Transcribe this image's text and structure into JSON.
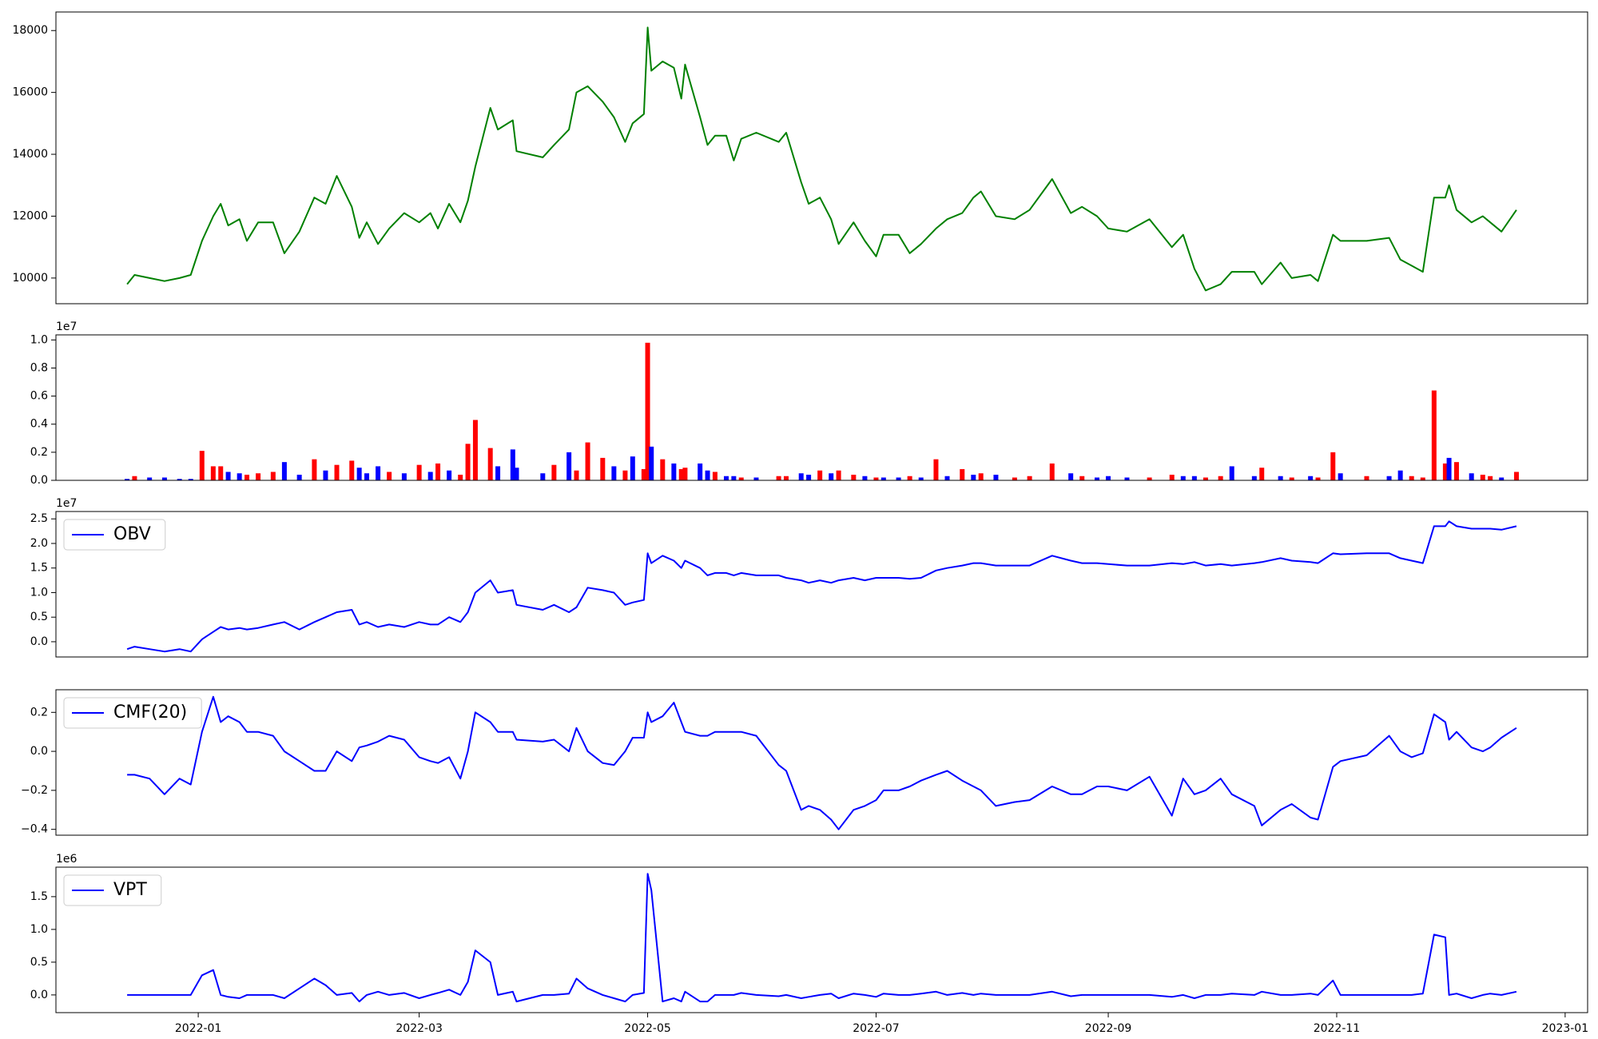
{
  "chart_data": [
    {
      "type": "line",
      "color": "#008000",
      "x": [
        18974,
        18976,
        18980,
        18984,
        18988,
        18991,
        18994,
        18997,
        18999,
        19001,
        19004,
        19006,
        19009,
        19013,
        19016,
        19020,
        19024,
        19027,
        19030,
        19034,
        19036,
        19038,
        19041,
        19044,
        19048,
        19052,
        19055,
        19057,
        19060,
        19063,
        19065,
        19067,
        19071,
        19073,
        19077,
        19078,
        19085,
        19088,
        19092,
        19094,
        19097,
        19101,
        19104,
        19107,
        19109,
        19112,
        19113,
        19114,
        19117,
        19120,
        19122,
        19123,
        19127,
        19129,
        19131,
        19134,
        19136,
        19138,
        19142,
        19148,
        19150,
        19154,
        19156,
        19159,
        19162,
        19164,
        19168,
        19171,
        19174,
        19176,
        19180,
        19183,
        19186,
        19190,
        19193,
        19197,
        19200,
        19202,
        19206,
        19211,
        19215,
        19221,
        19226,
        19229,
        19233,
        19236,
        19241,
        19247,
        19253,
        19256,
        19259,
        19262,
        19266,
        19269,
        19275,
        19277,
        19282,
        19285,
        19290,
        19292,
        19296,
        19298,
        19305,
        19311,
        19314,
        19317,
        19320,
        19323,
        19326,
        19327,
        19329,
        19333,
        19336,
        19338,
        19341,
        19345
      ],
      "values": [
        9800,
        10100,
        10000,
        9900,
        10000,
        10100,
        11200,
        12000,
        12400,
        11700,
        11900,
        11200,
        11800,
        11800,
        10800,
        11500,
        12600,
        12400,
        13300,
        12300,
        11300,
        11800,
        11100,
        11600,
        12100,
        11800,
        12100,
        11600,
        12400,
        11800,
        12500,
        13600,
        15500,
        14800,
        15100,
        14100,
        13900,
        14300,
        14800,
        16000,
        16200,
        15700,
        15200,
        14400,
        15000,
        15300,
        18100,
        16700,
        17000,
        16800,
        15800,
        16900,
        15200,
        14300,
        14600,
        14600,
        13800,
        14500,
        14700,
        14400,
        14700,
        13100,
        12400,
        12600,
        11900,
        11100,
        11800,
        11200,
        10700,
        11400,
        11400,
        10800,
        11100,
        11600,
        11900,
        12100,
        12600,
        12800,
        12000,
        11900,
        12200,
        13200,
        12100,
        12300,
        12000,
        11600,
        11500,
        11900,
        11000,
        11400,
        10300,
        9600,
        9800,
        10200,
        10200,
        9800,
        10500,
        10000,
        10100,
        9900,
        11400,
        11200,
        11200,
        11300,
        10600,
        10400,
        10200,
        12600,
        12600,
        13000,
        12200,
        11800,
        12000,
        11800,
        11500,
        12200
      ],
      "xlim": [
        18955,
        19364
      ],
      "ylim": [
        9170,
        18600
      ],
      "yticks": [
        10000,
        12000,
        14000,
        16000,
        18000
      ]
    },
    {
      "type": "bar",
      "offset_text": "1e7",
      "values": [
        0.01,
        0.03,
        0.02,
        0.02,
        0.01,
        0.01,
        0.21,
        0.1,
        0.1,
        0.06,
        0.05,
        0.04,
        0.05,
        0.06,
        0.13,
        0.04,
        0.15,
        0.07,
        0.11,
        0.14,
        0.09,
        0.05,
        0.1,
        0.06,
        0.05,
        0.11,
        0.06,
        0.12,
        0.07,
        0.04,
        0.26,
        0.43,
        0.23,
        0.1,
        0.22,
        0.09,
        0.05,
        0.11,
        0.2,
        0.07,
        0.27,
        0.16,
        0.1,
        0.07,
        0.17,
        0.08,
        0.98,
        0.24,
        0.15,
        0.12,
        0.08,
        0.09,
        0.12,
        0.07,
        0.06,
        0.03,
        0.03,
        0.02,
        0.02,
        0.03,
        0.03,
        0.05,
        0.04,
        0.07,
        0.05,
        0.07,
        0.04,
        0.03,
        0.02,
        0.02,
        0.02,
        0.03,
        0.02,
        0.15,
        0.03,
        0.08,
        0.04,
        0.05,
        0.04,
        0.02,
        0.03,
        0.12,
        0.05,
        0.03,
        0.02,
        0.03,
        0.02,
        0.02,
        0.04,
        0.03,
        0.03,
        0.02,
        0.03,
        0.1,
        0.03,
        0.09,
        0.03,
        0.02,
        0.03,
        0.02,
        0.2,
        0.05,
        0.03,
        0.03,
        0.07,
        0.03,
        0.02,
        0.64,
        0.12,
        0.16,
        0.13,
        0.05,
        0.04,
        0.03,
        0.02,
        0.06
      ],
      "colors": [
        "#0000ff",
        "#ff0000",
        "#0000ff",
        "#0000ff",
        "#0000ff",
        "#0000ff",
        "#ff0000",
        "#ff0000",
        "#ff0000",
        "#0000ff",
        "#0000ff",
        "#ff0000",
        "#ff0000",
        "#ff0000",
        "#0000ff",
        "#0000ff",
        "#ff0000",
        "#0000ff",
        "#ff0000",
        "#ff0000",
        "#0000ff",
        "#0000ff",
        "#0000ff",
        "#ff0000",
        "#0000ff",
        "#ff0000",
        "#0000ff",
        "#ff0000",
        "#0000ff",
        "#ff0000",
        "#ff0000",
        "#ff0000",
        "#ff0000",
        "#0000ff",
        "#0000ff",
        "#0000ff",
        "#0000ff",
        "#ff0000",
        "#0000ff",
        "#ff0000",
        "#ff0000",
        "#ff0000",
        "#0000ff",
        "#ff0000",
        "#0000ff",
        "#ff0000",
        "#ff0000",
        "#0000ff",
        "#ff0000",
        "#0000ff",
        "#ff0000",
        "#ff0000",
        "#0000ff",
        "#0000ff",
        "#ff0000",
        "#0000ff",
        "#0000ff",
        "#ff0000",
        "#0000ff",
        "#ff0000",
        "#ff0000",
        "#0000ff",
        "#0000ff",
        "#ff0000",
        "#0000ff",
        "#ff0000",
        "#ff0000",
        "#0000ff",
        "#ff0000",
        "#0000ff",
        "#0000ff",
        "#ff0000",
        "#0000ff",
        "#ff0000",
        "#0000ff",
        "#ff0000",
        "#0000ff",
        "#ff0000",
        "#0000ff",
        "#ff0000",
        "#ff0000",
        "#ff0000",
        "#0000ff",
        "#ff0000",
        "#0000ff",
        "#0000ff",
        "#0000ff",
        "#ff0000",
        "#ff0000",
        "#0000ff",
        "#0000ff",
        "#ff0000",
        "#ff0000",
        "#0000ff",
        "#0000ff",
        "#ff0000",
        "#0000ff",
        "#ff0000",
        "#0000ff",
        "#ff0000",
        "#ff0000",
        "#0000ff",
        "#ff0000",
        "#0000ff",
        "#0000ff",
        "#ff0000",
        "#ff0000",
        "#ff0000",
        "#ff0000",
        "#0000ff",
        "#ff0000",
        "#0000ff",
        "#ff0000",
        "#ff0000",
        "#0000ff",
        "#ff0000"
      ],
      "ylim": [
        0,
        1.036
      ],
      "yticks": [
        {
          "value": 0,
          "label": "0.0"
        },
        0.2,
        0.4,
        0.6,
        0.8,
        {
          "value": 1,
          "label": "1.0"
        }
      ]
    },
    {
      "type": "line",
      "offset_text": "1e7",
      "legend": "upper left",
      "series": [
        {
          "name": "OBV",
          "color": "#0000ff",
          "values": [
            -0.15,
            -0.1,
            -0.15,
            -0.2,
            -0.15,
            -0.2,
            0.05,
            0.2,
            0.3,
            0.25,
            0.28,
            0.25,
            0.28,
            0.35,
            0.4,
            0.25,
            0.4,
            0.5,
            0.6,
            0.65,
            0.35,
            0.4,
            0.3,
            0.35,
            0.3,
            0.4,
            0.35,
            0.35,
            0.5,
            0.4,
            0.6,
            1.0,
            1.25,
            1.0,
            1.05,
            0.75,
            0.65,
            0.75,
            0.6,
            0.7,
            1.1,
            1.05,
            1.0,
            0.75,
            0.8,
            0.85,
            1.8,
            1.6,
            1.75,
            1.65,
            1.5,
            1.65,
            1.5,
            1.35,
            1.4,
            1.4,
            1.35,
            1.4,
            1.35,
            1.35,
            1.3,
            1.25,
            1.2,
            1.25,
            1.2,
            1.25,
            1.3,
            1.25,
            1.3,
            1.3,
            1.3,
            1.28,
            1.3,
            1.45,
            1.5,
            1.55,
            1.6,
            1.6,
            1.55,
            1.55,
            1.55,
            1.75,
            1.65,
            1.6,
            1.6,
            1.58,
            1.55,
            1.55,
            1.6,
            1.58,
            1.62,
            1.55,
            1.58,
            1.55,
            1.6,
            1.62,
            1.7,
            1.65,
            1.62,
            1.6,
            1.8,
            1.78,
            1.8,
            1.8,
            1.7,
            1.65,
            1.6,
            2.35,
            2.35,
            2.45,
            2.35,
            2.3,
            2.3,
            2.3,
            2.28,
            2.35
          ]
        }
      ],
      "ylim": [
        -0.31,
        2.65
      ],
      "yticks": [
        {
          "value": 0,
          "label": "0.0"
        },
        0.5,
        {
          "value": 1,
          "label": "1.0"
        },
        1.5,
        {
          "value": 2,
          "label": "2.0"
        },
        2.5
      ]
    },
    {
      "type": "line",
      "legend": "upper left",
      "series": [
        {
          "name": "CMF(20)",
          "color": "#0000ff",
          "values": [
            -0.12,
            -0.12,
            -0.14,
            -0.22,
            -0.14,
            -0.17,
            0.1,
            0.28,
            0.15,
            0.18,
            0.15,
            0.1,
            0.1,
            0.08,
            0.0,
            -0.05,
            -0.1,
            -0.1,
            0.0,
            -0.05,
            0.02,
            0.03,
            0.05,
            0.08,
            0.06,
            -0.03,
            -0.05,
            -0.06,
            -0.03,
            -0.14,
            0.0,
            0.2,
            0.15,
            0.1,
            0.1,
            0.06,
            0.05,
            0.06,
            0.0,
            0.12,
            0.0,
            -0.06,
            -0.07,
            0.0,
            0.07,
            0.07,
            0.2,
            0.15,
            0.18,
            0.25,
            0.15,
            0.1,
            0.08,
            0.08,
            0.1,
            0.1,
            0.1,
            0.1,
            0.08,
            -0.07,
            -0.1,
            -0.3,
            -0.28,
            -0.3,
            -0.35,
            -0.4,
            -0.3,
            -0.28,
            -0.25,
            -0.2,
            -0.2,
            -0.18,
            -0.15,
            -0.12,
            -0.1,
            -0.15,
            -0.18,
            -0.2,
            -0.28,
            -0.26,
            -0.25,
            -0.18,
            -0.22,
            -0.22,
            -0.18,
            -0.18,
            -0.2,
            -0.13,
            -0.33,
            -0.14,
            -0.22,
            -0.2,
            -0.14,
            -0.22,
            -0.28,
            -0.38,
            -0.3,
            -0.27,
            -0.34,
            -0.35,
            -0.08,
            -0.05,
            -0.02,
            0.08,
            0.0,
            -0.03,
            -0.01,
            0.19,
            0.15,
            0.06,
            0.1,
            0.02,
            0.0,
            0.02,
            0.07,
            0.12
          ]
        }
      ],
      "ylim": [
        -0.43,
        0.316
      ],
      "yticks": [
        {
          "value": -0.4,
          "label": "−0.4"
        },
        {
          "value": -0.2,
          "label": "−0.2"
        },
        {
          "value": 0,
          "label": "0.0"
        },
        0.2
      ]
    },
    {
      "type": "line",
      "offset_text": "1e6",
      "legend": "upper left",
      "series": [
        {
          "name": "VPT",
          "color": "#0000ff",
          "values": [
            0.0,
            0.0,
            0.0,
            0.0,
            0.0,
            0.0,
            0.3,
            0.38,
            0.0,
            -0.03,
            -0.05,
            0.0,
            0.0,
            0.0,
            -0.05,
            0.1,
            0.25,
            0.15,
            0.0,
            0.03,
            -0.1,
            0.0,
            0.05,
            0.0,
            0.03,
            -0.05,
            0.0,
            0.03,
            0.08,
            0.0,
            0.2,
            0.68,
            0.5,
            0.0,
            0.05,
            -0.1,
            0.0,
            0.0,
            0.02,
            0.25,
            0.1,
            0.0,
            -0.05,
            -0.1,
            0.0,
            0.03,
            1.85,
            1.6,
            -0.1,
            -0.05,
            -0.1,
            0.05,
            -0.1,
            -0.1,
            0.0,
            0.0,
            0.0,
            0.03,
            0.0,
            -0.02,
            0.0,
            -0.05,
            -0.03,
            0.0,
            0.02,
            -0.05,
            0.02,
            0.0,
            -0.03,
            0.02,
            0.0,
            0.0,
            0.02,
            0.05,
            0.0,
            0.03,
            0.0,
            0.02,
            0.0,
            0.0,
            0.0,
            0.05,
            -0.02,
            0.0,
            0.0,
            0.0,
            0.0,
            0.0,
            -0.03,
            0.0,
            -0.05,
            0.0,
            0.0,
            0.02,
            0.0,
            0.05,
            0.0,
            0.0,
            0.02,
            0.0,
            0.22,
            0.0,
            0.0,
            0.0,
            0.0,
            0.0,
            0.02,
            0.92,
            0.88,
            0.0,
            0.02,
            -0.05,
            0.0,
            0.02,
            0.0,
            0.05
          ]
        }
      ],
      "ylim": [
        -0.27,
        1.95
      ],
      "yticks": [
        {
          "value": 0,
          "label": "0.0"
        },
        0.5,
        {
          "value": 1,
          "label": "1.0"
        },
        1.5
      ],
      "xticks": [
        {
          "value": 18993,
          "label": "2022-01"
        },
        {
          "value": 19052,
          "label": "2022-03"
        },
        {
          "value": 19113,
          "label": "2022-05"
        },
        {
          "value": 19174,
          "label": "2022-07"
        },
        {
          "value": 19236,
          "label": "2022-09"
        },
        {
          "value": 19297,
          "label": "2022-11"
        },
        {
          "value": 19358,
          "label": "2023-01"
        }
      ]
    }
  ]
}
